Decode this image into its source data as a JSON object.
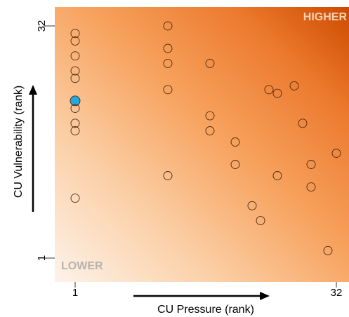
{
  "chart_data": {
    "type": "scatter",
    "title": "",
    "xlabel": "CU Pressure (rank)",
    "ylabel": "CU Vulnerability (rank)",
    "xlim": [
      1,
      32
    ],
    "ylim": [
      1,
      32
    ],
    "x_ticks": [
      "1",
      "32"
    ],
    "y_ticks": [
      "1",
      "32"
    ],
    "corner_labels": {
      "high": "HIGHER",
      "low": "LOWER"
    },
    "grid": false,
    "background": "gradient from low (bottom-left) to high (top-right)",
    "colors": {
      "gradient_low": "#fdf3ea",
      "gradient_mid": "#f7a25e",
      "gradient_high": "#cc4a00",
      "marker_edge": "#4a2a10",
      "highlight": "#23a9e1",
      "high_label": "#f4d2b4",
      "low_label": "#b9b2ae"
    },
    "points": [
      {
        "x": 1,
        "y": 31
      },
      {
        "x": 1,
        "y": 30
      },
      {
        "x": 1,
        "y": 28
      },
      {
        "x": 1,
        "y": 26
      },
      {
        "x": 1,
        "y": 25
      },
      {
        "x": 1,
        "y": 22,
        "highlight": true
      },
      {
        "x": 1,
        "y": 21
      },
      {
        "x": 1,
        "y": 19
      },
      {
        "x": 1,
        "y": 18
      },
      {
        "x": 1,
        "y": 9
      },
      {
        "x": 12,
        "y": 32
      },
      {
        "x": 12,
        "y": 29
      },
      {
        "x": 12,
        "y": 27
      },
      {
        "x": 12,
        "y": 23.5
      },
      {
        "x": 12,
        "y": 12
      },
      {
        "x": 17,
        "y": 27
      },
      {
        "x": 17,
        "y": 20
      },
      {
        "x": 17,
        "y": 18
      },
      {
        "x": 20,
        "y": 16.5
      },
      {
        "x": 20,
        "y": 13.5
      },
      {
        "x": 22,
        "y": 8
      },
      {
        "x": 23,
        "y": 6
      },
      {
        "x": 24,
        "y": 23.5
      },
      {
        "x": 25,
        "y": 23
      },
      {
        "x": 25,
        "y": 12
      },
      {
        "x": 27,
        "y": 24
      },
      {
        "x": 28,
        "y": 19
      },
      {
        "x": 29,
        "y": 13.5
      },
      {
        "x": 29,
        "y": 10.5
      },
      {
        "x": 31,
        "y": 2
      },
      {
        "x": 32,
        "y": 15
      }
    ]
  }
}
